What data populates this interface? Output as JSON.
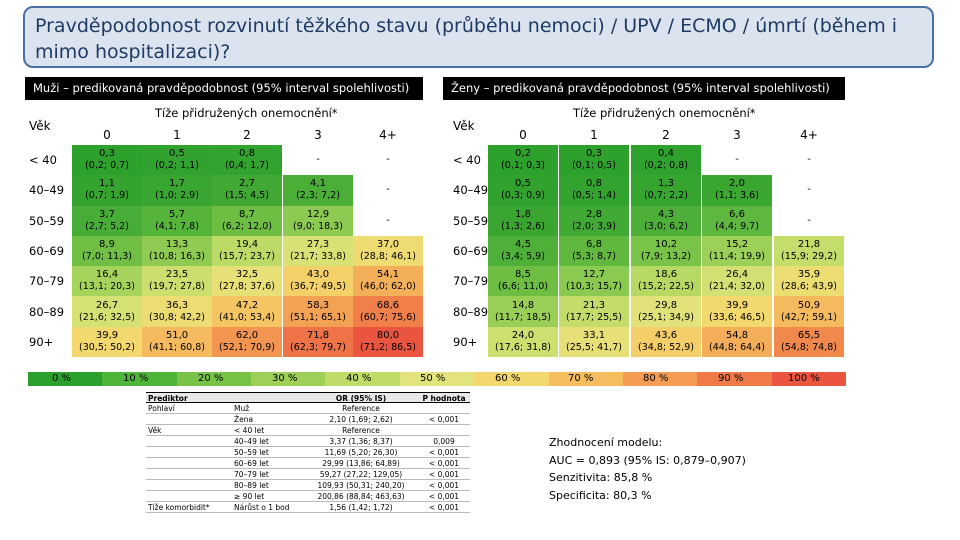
{
  "title": "Pravděpodobnost rozvinutí těžkého stavu (průběhu nemoci) / UPV / ECMO / úmrtí (během i mimo hospitalizaci)?",
  "colors": {
    "scale": [
      "#2ca02c",
      "#4fb53a",
      "#78c347",
      "#9ed058",
      "#bfdc68",
      "#e2e37a",
      "#f3d86e",
      "#f5bd5e",
      "#f39c52",
      "#ef7a48",
      "#e9553f"
    ],
    "title_border": "#4a6fa5",
    "title_bg": "#dbe3ef"
  },
  "panels": [
    {
      "header": "Muži – predikovaná pravděpodobnost (95% interval spolehlivosti)",
      "vek_label": "Věk",
      "tize_label": "Tíže přidružených onemocnění*",
      "columns": [
        "0",
        "1",
        "2",
        "3",
        "4+"
      ],
      "rows": [
        {
          "age": "< 40",
          "cells": [
            [
              "0,3",
              "(0,2; 0,7)"
            ],
            [
              "0,5",
              "(0,2; 1,1)"
            ],
            [
              "0,8",
              "(0,4; 1,7)"
            ],
            [
              "-",
              ""
            ],
            [
              "-",
              ""
            ]
          ]
        },
        {
          "age": "40–49",
          "cells": [
            [
              "1,1",
              "(0,7; 1,9)"
            ],
            [
              "1,7",
              "(1,0; 2,9)"
            ],
            [
              "2,7",
              "(1,5; 4,5)"
            ],
            [
              "4,1",
              "(2,3; 7,2)"
            ],
            [
              "-",
              ""
            ]
          ]
        },
        {
          "age": "50–59",
          "cells": [
            [
              "3,7",
              "(2,7; 5,2)"
            ],
            [
              "5,7",
              "(4,1; 7,8)"
            ],
            [
              "8,7",
              "(6,2; 12,0)"
            ],
            [
              "12,9",
              "(9,0; 18,3)"
            ],
            [
              "-",
              ""
            ]
          ]
        },
        {
          "age": "60–69",
          "cells": [
            [
              "8,9",
              "(7,0; 11,3)"
            ],
            [
              "13,3",
              "(10,8; 16,3)"
            ],
            [
              "19,4",
              "(15,7; 23,7)"
            ],
            [
              "27,3",
              "(21,7; 33,8)"
            ],
            [
              "37,0",
              "(28,8; 46,1)"
            ]
          ]
        },
        {
          "age": "70–79",
          "cells": [
            [
              "16,4",
              "(13,1; 20,3)"
            ],
            [
              "23,5",
              "(19,7; 27,8)"
            ],
            [
              "32,5",
              "(27,8; 37,6)"
            ],
            [
              "43,0",
              "(36,7; 49,5)"
            ],
            [
              "54,1",
              "(46,0; 62,0)"
            ]
          ]
        },
        {
          "age": "80–89",
          "cells": [
            [
              "26,7",
              "(21,6; 32,5)"
            ],
            [
              "36,3",
              "(30,8; 42,2)"
            ],
            [
              "47,2",
              "(41,0; 53,4)"
            ],
            [
              "58,3",
              "(51,1; 65,1)"
            ],
            [
              "68,6",
              "(60,7; 75,6)"
            ]
          ]
        },
        {
          "age": "90+",
          "cells": [
            [
              "39,9",
              "(30,5; 50,2)"
            ],
            [
              "51,0",
              "(41,1; 60,8)"
            ],
            [
              "62,0",
              "(52,1; 70,9)"
            ],
            [
              "71,8",
              "(62,3; 79,7)"
            ],
            [
              "80,0",
              "(71,2; 86,5)"
            ]
          ]
        }
      ]
    },
    {
      "header": "Ženy – predikovaná pravděpodobnost (95% interval spolehlivosti)",
      "vek_label": "Věk",
      "tize_label": "Tíže přidružených onemocnění*",
      "columns": [
        "0",
        "1",
        "2",
        "3",
        "4+"
      ],
      "rows": [
        {
          "age": "< 40",
          "cells": [
            [
              "0,2",
              "(0,1; 0,3)"
            ],
            [
              "0,3",
              "(0,1; 0,5)"
            ],
            [
              "0,4",
              "(0,2; 0,8)"
            ],
            [
              "-",
              ""
            ],
            [
              "-",
              ""
            ]
          ]
        },
        {
          "age": "40–49",
          "cells": [
            [
              "0,5",
              "(0,3; 0,9)"
            ],
            [
              "0,8",
              "(0,5; 1,4)"
            ],
            [
              "1,3",
              "(0,7; 2,2)"
            ],
            [
              "2,0",
              "(1,1; 3,6)"
            ],
            [
              "-",
              ""
            ]
          ]
        },
        {
          "age": "50–59",
          "cells": [
            [
              "1,8",
              "(1,3; 2,6)"
            ],
            [
              "2,8",
              "(2,0; 3,9)"
            ],
            [
              "4,3",
              "(3,0; 6,2)"
            ],
            [
              "6,6",
              "(4,4; 9,7)"
            ],
            [
              "-",
              ""
            ]
          ]
        },
        {
          "age": "60–69",
          "cells": [
            [
              "4,5",
              "(3,4; 5,9)"
            ],
            [
              "6,8",
              "(5,3; 8,7)"
            ],
            [
              "10,2",
              "(7,9; 13,2)"
            ],
            [
              "15,2",
              "(11,4; 19,9)"
            ],
            [
              "21,8",
              "(15,9; 29,2)"
            ]
          ]
        },
        {
          "age": "70–79",
          "cells": [
            [
              "8,5",
              "(6,6; 11,0)"
            ],
            [
              "12,7",
              "(10,3; 15,7)"
            ],
            [
              "18,6",
              "(15,2; 22,5)"
            ],
            [
              "26,4",
              "(21,4; 32,0)"
            ],
            [
              "35,9",
              "(28,6; 43,9)"
            ]
          ]
        },
        {
          "age": "80–89",
          "cells": [
            [
              "14,8",
              "(11,7; 18,5)"
            ],
            [
              "21,3",
              "(17,7; 25,5)"
            ],
            [
              "29,8",
              "(25,1; 34,9)"
            ],
            [
              "39,9",
              "(33,6; 46,5)"
            ],
            [
              "50,9",
              "(42,7; 59,1)"
            ]
          ]
        },
        {
          "age": "90+",
          "cells": [
            [
              "24,0",
              "(17,6; 31,8)"
            ],
            [
              "33,1",
              "(25,5; 41,7)"
            ],
            [
              "43,6",
              "(34,8; 52,9)"
            ],
            [
              "54,8",
              "(44,8; 64,4)"
            ],
            [
              "65,5",
              "(54,8; 74,8)"
            ]
          ]
        }
      ]
    }
  ],
  "scale_labels": [
    "0 %",
    "10 %",
    "20 %",
    "30 %",
    "40 %",
    "50 %",
    "60 %",
    "70 %",
    "80 %",
    "90 %",
    "100 %"
  ],
  "or_table": {
    "headers": [
      "Prediktor",
      "",
      "OR (95% IS)",
      "P hodnota"
    ],
    "rows": [
      [
        "Pohlaví",
        "Muž",
        "Reference",
        ""
      ],
      [
        "",
        "Žena",
        "2,10 (1,69; 2,62)",
        "< 0,001"
      ],
      [
        "Věk",
        "< 40 let",
        "Reference",
        ""
      ],
      [
        "",
        "40–49 let",
        "3,37 (1,36; 8,37)",
        "0,009"
      ],
      [
        "",
        "50–59 let",
        "11,69 (5,20; 26,30)",
        "< 0,001"
      ],
      [
        "",
        "60–69 let",
        "29,99 (13,86; 64,89)",
        "< 0,001"
      ],
      [
        "",
        "70–79 let",
        "59,27 (27,22; 129,05)",
        "< 0,001"
      ],
      [
        "",
        "80–89 let",
        "109,93 (50,31; 240,20)",
        "< 0,001"
      ],
      [
        "",
        "≥ 90 let",
        "200,86 (88,84; 463,63)",
        "< 0,001"
      ],
      [
        "Tíže komorbidit*",
        "Nárůst o 1 bod",
        "1,56 (1,42; 1,72)",
        "< 0,001"
      ]
    ]
  },
  "model_eval": {
    "title": "Zhodnocení modelu:",
    "auc": "AUC = 0,893 (95% IS: 0,879–0,907)",
    "sensitivity": "Senzitivita: 85,8 %",
    "specificity": "Specificita: 80,3 %"
  }
}
